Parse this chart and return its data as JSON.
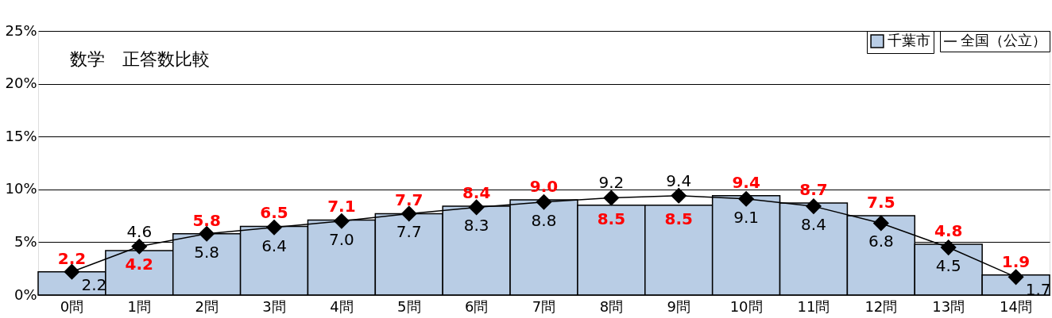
{
  "chart_data": {
    "type": "bar",
    "title": "数学　正答数比較",
    "categories": [
      "0問",
      "1問",
      "2問",
      "3問",
      "4問",
      "5問",
      "6問",
      "7問",
      "8問",
      "9問",
      "10問",
      "11問",
      "12問",
      "13問",
      "14問"
    ],
    "series": [
      {
        "name": "千葉市",
        "color": "#b9cde5",
        "values": [
          2.2,
          4.2,
          5.8,
          6.5,
          7.1,
          7.7,
          8.4,
          9.0,
          8.5,
          8.5,
          9.4,
          8.7,
          7.5,
          4.8,
          1.9
        ],
        "value_labels": [
          "2.2",
          "4.2",
          "5.8",
          "6.5",
          "7.1",
          "7.7",
          "8.4",
          "9.0",
          "8.5",
          "8.5",
          "9.4",
          "8.7",
          "7.5",
          "4.8",
          "1.9"
        ]
      },
      {
        "name": "全国（公立）",
        "type": "line",
        "color": "#000000",
        "values": [
          2.2,
          4.6,
          5.8,
          6.4,
          7.0,
          7.7,
          8.3,
          8.8,
          9.2,
          9.4,
          9.1,
          8.4,
          6.8,
          4.5,
          1.7
        ],
        "value_labels": [
          "2.2",
          "4.6",
          "5.8",
          "6.4",
          "7.0",
          "7.7",
          "8.3",
          "8.8",
          "9.2",
          "9.4",
          "9.1",
          "8.4",
          "6.8",
          "4.5",
          "1.7"
        ]
      }
    ],
    "ylim": [
      0,
      25
    ],
    "yticks": [
      {
        "value": 0,
        "label": "0%"
      },
      {
        "value": 5,
        "label": "5%"
      },
      {
        "value": 10,
        "label": "10%"
      },
      {
        "value": 15,
        "label": "15%"
      },
      {
        "value": 20,
        "label": "20%"
      },
      {
        "value": 25,
        "label": "25%"
      }
    ],
    "grid": "y",
    "legend": "top right",
    "marker": "diamond",
    "data_labels": true
  }
}
